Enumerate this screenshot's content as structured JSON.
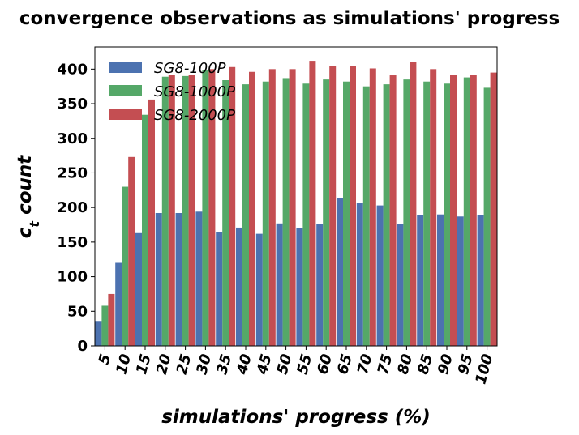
{
  "chart_data": {
    "type": "bar",
    "title": "convergence observations as simulations' progress",
    "xlabel": "simulations' progress (%)",
    "ylabel_main": "c",
    "ylabel_sub": "t",
    "ylabel_rest": " count",
    "categories": [
      "5",
      "10",
      "15",
      "20",
      "25",
      "30",
      "35",
      "40",
      "45",
      "50",
      "55",
      "60",
      "65",
      "70",
      "75",
      "80",
      "85",
      "90",
      "95",
      "100"
    ],
    "ylim": [
      0,
      432
    ],
    "yticks": [
      0,
      50,
      100,
      150,
      200,
      250,
      300,
      350,
      400
    ],
    "legend_position": "top-left",
    "grid": false,
    "series": [
      {
        "name": "SG8-100P",
        "color": "#4c72b0",
        "values": [
          36,
          120,
          163,
          192,
          192,
          194,
          164,
          171,
          162,
          177,
          170,
          176,
          214,
          207,
          203,
          176,
          189,
          190,
          187,
          189
        ]
      },
      {
        "name": "SG8-1000P",
        "color": "#55a868",
        "values": [
          58,
          230,
          334,
          389,
          390,
          398,
          384,
          378,
          382,
          387,
          379,
          385,
          382,
          375,
          378,
          385,
          382,
          379,
          388,
          373
        ]
      },
      {
        "name": "SG8-2000P",
        "color": "#c44e52",
        "values": [
          75,
          273,
          356,
          392,
          392,
          400,
          403,
          396,
          400,
          400,
          412,
          404,
          405,
          401,
          391,
          410,
          400,
          392,
          392,
          395
        ]
      }
    ]
  }
}
